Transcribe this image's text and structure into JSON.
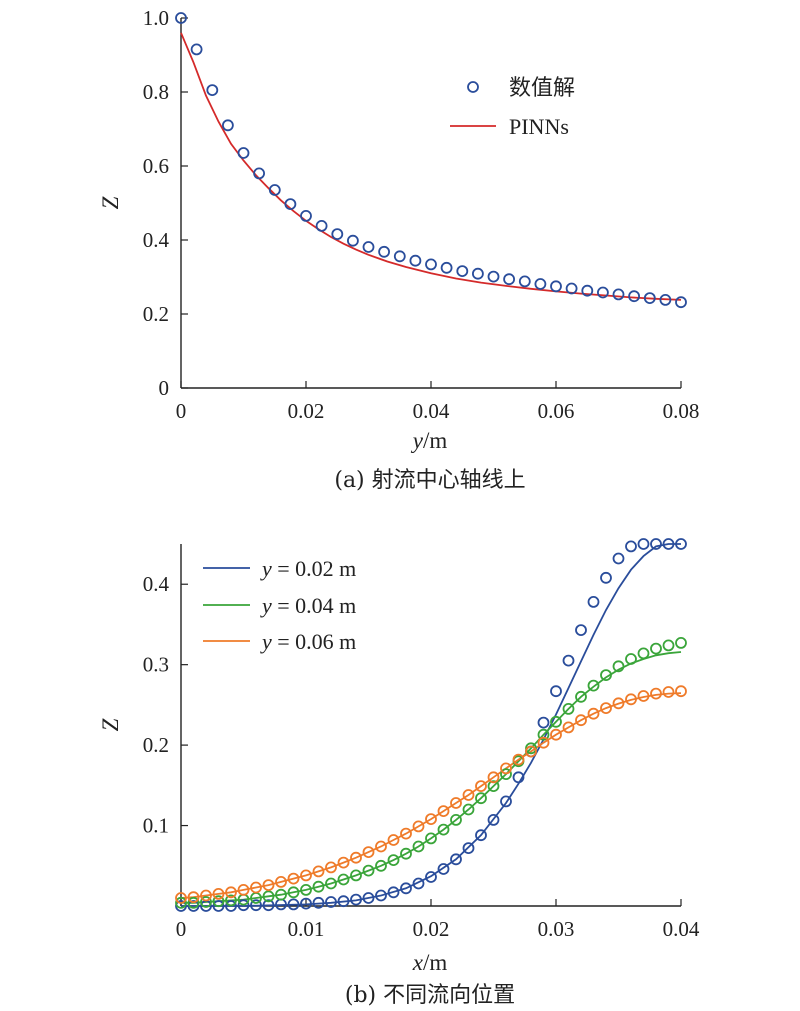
{
  "chart_data": [
    {
      "type": "line",
      "caption": "(a) 射流中心轴线上",
      "xlabel": "y/m",
      "xlabel_var": "y",
      "xlabel_unit": "/m",
      "ylabel": "Z",
      "xlim": [
        0,
        0.08
      ],
      "ylim": [
        0,
        1.0
      ],
      "xticks": [
        "0",
        "0.02",
        "0.04",
        "0.06",
        "0.08"
      ],
      "xtick_values": [
        0,
        0.02,
        0.04,
        0.06,
        0.08
      ],
      "yticks": [
        "0",
        "0.2",
        "0.4",
        "0.6",
        "0.8",
        "1.0"
      ],
      "ytick_values": [
        0,
        0.2,
        0.4,
        0.6,
        0.8,
        1.0
      ],
      "legend_position": "top-right",
      "series": [
        {
          "name": "数值解",
          "style": "markers",
          "color": "#2a4d9b",
          "x": [
            0,
            0.0025,
            0.005,
            0.0075,
            0.01,
            0.0125,
            0.015,
            0.0175,
            0.02,
            0.0225,
            0.025,
            0.0275,
            0.03,
            0.0325,
            0.035,
            0.0375,
            0.04,
            0.0425,
            0.045,
            0.0475,
            0.05,
            0.0525,
            0.055,
            0.0575,
            0.06,
            0.0625,
            0.065,
            0.0675,
            0.07,
            0.0725,
            0.075,
            0.0775,
            0.08
          ],
          "y": [
            1.0,
            0.915,
            0.805,
            0.71,
            0.635,
            0.58,
            0.535,
            0.497,
            0.465,
            0.438,
            0.416,
            0.398,
            0.381,
            0.368,
            0.356,
            0.344,
            0.334,
            0.325,
            0.316,
            0.309,
            0.301,
            0.294,
            0.288,
            0.281,
            0.275,
            0.269,
            0.263,
            0.258,
            0.253,
            0.248,
            0.243,
            0.238,
            0.232
          ]
        },
        {
          "name": "PINNs",
          "style": "line",
          "color": "#d42a2a",
          "x": [
            0,
            0.002,
            0.004,
            0.006,
            0.008,
            0.01,
            0.012,
            0.014,
            0.016,
            0.018,
            0.02,
            0.022,
            0.024,
            0.026,
            0.028,
            0.03,
            0.033,
            0.036,
            0.04,
            0.044,
            0.048,
            0.052,
            0.056,
            0.06,
            0.064,
            0.068,
            0.072,
            0.076,
            0.08
          ],
          "y": [
            0.96,
            0.88,
            0.79,
            0.72,
            0.66,
            0.615,
            0.575,
            0.54,
            0.507,
            0.478,
            0.452,
            0.429,
            0.408,
            0.39,
            0.374,
            0.36,
            0.342,
            0.327,
            0.31,
            0.296,
            0.285,
            0.276,
            0.268,
            0.261,
            0.255,
            0.25,
            0.245,
            0.241,
            0.238
          ]
        }
      ]
    },
    {
      "type": "line",
      "caption": "(b) 不同流向位置",
      "xlabel": "x/m",
      "xlabel_var": "x",
      "xlabel_unit": "/m",
      "ylabel": "Z",
      "xlim": [
        0,
        0.04
      ],
      "ylim": [
        0,
        0.45
      ],
      "xticks": [
        "0",
        "0.01",
        "0.02",
        "0.03",
        "0.04"
      ],
      "xtick_values": [
        0,
        0.01,
        0.02,
        0.03,
        0.04
      ],
      "yticks": [
        "0.1",
        "0.2",
        "0.3",
        "0.4"
      ],
      "ytick_values": [
        0.1,
        0.2,
        0.3,
        0.4
      ],
      "legend_position": "top-left",
      "series": [
        {
          "name": "y = 0.02 m",
          "legend_var": "y",
          "legend_rest": " = 0.02 m",
          "color": "#2a4d9b",
          "markers_x": [
            0,
            0.001,
            0.002,
            0.003,
            0.004,
            0.005,
            0.006,
            0.007,
            0.008,
            0.009,
            0.01,
            0.011,
            0.012,
            0.013,
            0.014,
            0.015,
            0.016,
            0.017,
            0.018,
            0.019,
            0.02,
            0.021,
            0.022,
            0.023,
            0.024,
            0.025,
            0.026,
            0.027,
            0.028,
            0.029,
            0.03,
            0.031,
            0.032,
            0.033,
            0.034,
            0.035,
            0.036,
            0.037,
            0.038,
            0.039,
            0.04
          ],
          "markers_y": [
            0.0,
            0.0,
            0.0,
            0.0,
            0.0,
            0.001,
            0.001,
            0.001,
            0.002,
            0.002,
            0.003,
            0.004,
            0.005,
            0.006,
            0.008,
            0.01,
            0.013,
            0.017,
            0.022,
            0.028,
            0.036,
            0.046,
            0.058,
            0.072,
            0.088,
            0.107,
            0.13,
            0.16,
            0.192,
            0.228,
            0.267,
            0.305,
            0.343,
            0.378,
            0.408,
            0.432,
            0.447,
            0.455,
            0.458,
            0.458,
            0.458
          ],
          "line_x": [
            0,
            0.005,
            0.01,
            0.012,
            0.014,
            0.016,
            0.018,
            0.02,
            0.022,
            0.024,
            0.026,
            0.027,
            0.028,
            0.029,
            0.03,
            0.031,
            0.032,
            0.033,
            0.034,
            0.035,
            0.036,
            0.037,
            0.038,
            0.039,
            0.04
          ],
          "line_y": [
            0.0,
            0.0,
            0.002,
            0.004,
            0.007,
            0.013,
            0.022,
            0.037,
            0.058,
            0.088,
            0.128,
            0.152,
            0.178,
            0.207,
            0.238,
            0.271,
            0.304,
            0.337,
            0.368,
            0.395,
            0.418,
            0.435,
            0.447,
            0.455,
            0.459
          ]
        },
        {
          "name": "y = 0.04 m",
          "legend_var": "y",
          "legend_rest": " = 0.04 m",
          "color": "#3aa53a",
          "markers_x": [
            0,
            0.001,
            0.002,
            0.003,
            0.004,
            0.005,
            0.006,
            0.007,
            0.008,
            0.009,
            0.01,
            0.011,
            0.012,
            0.013,
            0.014,
            0.015,
            0.016,
            0.017,
            0.018,
            0.019,
            0.02,
            0.021,
            0.022,
            0.023,
            0.024,
            0.025,
            0.026,
            0.027,
            0.028,
            0.029,
            0.03,
            0.031,
            0.032,
            0.033,
            0.034,
            0.035,
            0.036,
            0.037,
            0.038,
            0.039,
            0.04
          ],
          "markers_y": [
            0.004,
            0.004,
            0.005,
            0.006,
            0.007,
            0.008,
            0.01,
            0.012,
            0.014,
            0.017,
            0.02,
            0.024,
            0.028,
            0.033,
            0.038,
            0.044,
            0.05,
            0.057,
            0.065,
            0.074,
            0.084,
            0.095,
            0.107,
            0.12,
            0.134,
            0.149,
            0.164,
            0.18,
            0.196,
            0.213,
            0.229,
            0.245,
            0.26,
            0.274,
            0.287,
            0.298,
            0.307,
            0.314,
            0.32,
            0.324,
            0.327
          ]
        },
        {
          "name": "y = 0.06 m",
          "legend_var": "y",
          "legend_rest": " = 0.06 m",
          "color": "#ef7b2a",
          "markers_x": [
            0,
            0.001,
            0.002,
            0.003,
            0.004,
            0.005,
            0.006,
            0.007,
            0.008,
            0.009,
            0.01,
            0.011,
            0.012,
            0.013,
            0.014,
            0.015,
            0.016,
            0.017,
            0.018,
            0.019,
            0.02,
            0.021,
            0.022,
            0.023,
            0.024,
            0.025,
            0.026,
            0.027,
            0.028,
            0.029,
            0.03,
            0.031,
            0.032,
            0.033,
            0.034,
            0.035,
            0.036,
            0.037,
            0.038,
            0.039,
            0.04
          ],
          "markers_y": [
            0.01,
            0.011,
            0.013,
            0.015,
            0.017,
            0.02,
            0.023,
            0.026,
            0.03,
            0.034,
            0.038,
            0.043,
            0.048,
            0.054,
            0.06,
            0.067,
            0.074,
            0.082,
            0.09,
            0.099,
            0.108,
            0.118,
            0.128,
            0.138,
            0.149,
            0.16,
            0.171,
            0.182,
            0.192,
            0.203,
            0.213,
            0.222,
            0.231,
            0.239,
            0.246,
            0.252,
            0.257,
            0.261,
            0.264,
            0.266,
            0.267
          ]
        }
      ]
    }
  ]
}
